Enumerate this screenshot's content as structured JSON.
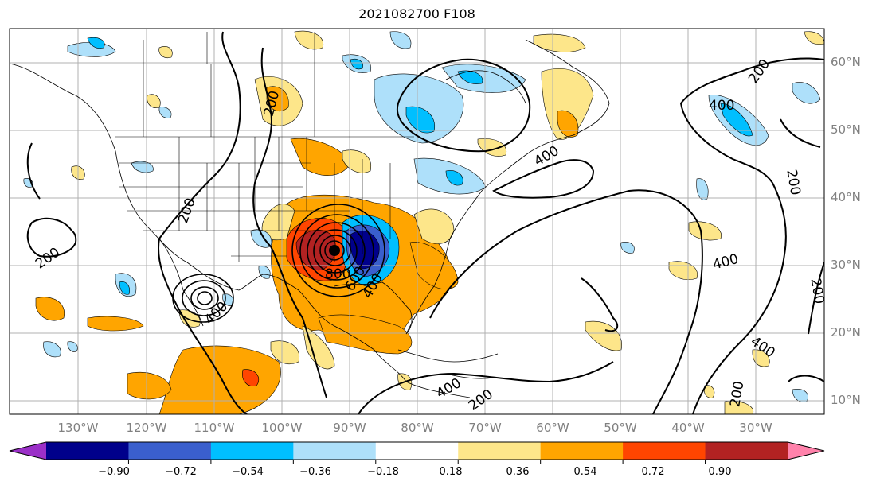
{
  "title": "2021082700 F108",
  "latitude_labels": [
    "10°N",
    "20°N",
    "30°N",
    "40°N",
    "50°N",
    "60°N"
  ],
  "longitude_labels": [
    "130°W",
    "120°W",
    "110°W",
    "100°W",
    "90°W",
    "80°W",
    "70°W",
    "60°W",
    "50°W",
    "40°W",
    "30°W"
  ],
  "contour_labels": [
    "200",
    "200",
    "200",
    "200",
    "200",
    "200",
    "200",
    "200",
    "400",
    "400",
    "400",
    "400",
    "400",
    "400",
    "400",
    "600",
    "800"
  ],
  "colorbar": {
    "ticks": [
      "−0.90",
      "−0.72",
      "−0.54",
      "−0.36",
      "−0.18",
      "0.18",
      "0.36",
      "0.54",
      "0.72",
      "0.90"
    ],
    "colors": [
      "#9b30c8",
      "#00008b",
      "#3a5fcd",
      "#00bfff",
      "#aee0fa",
      "#ffffff",
      "#fde68a",
      "#ffa500",
      "#ff4500",
      "#b22222",
      "#ff82ab"
    ]
  },
  "palette": {
    "light_blue": "#aee0fa",
    "blue": "#00bfff",
    "dark_blue": "#3a5fcd",
    "navy": "#00008b",
    "yellow": "#fde68a",
    "orange": "#ffa500",
    "red_orange": "#ff4500",
    "dark_red": "#b22222"
  }
}
